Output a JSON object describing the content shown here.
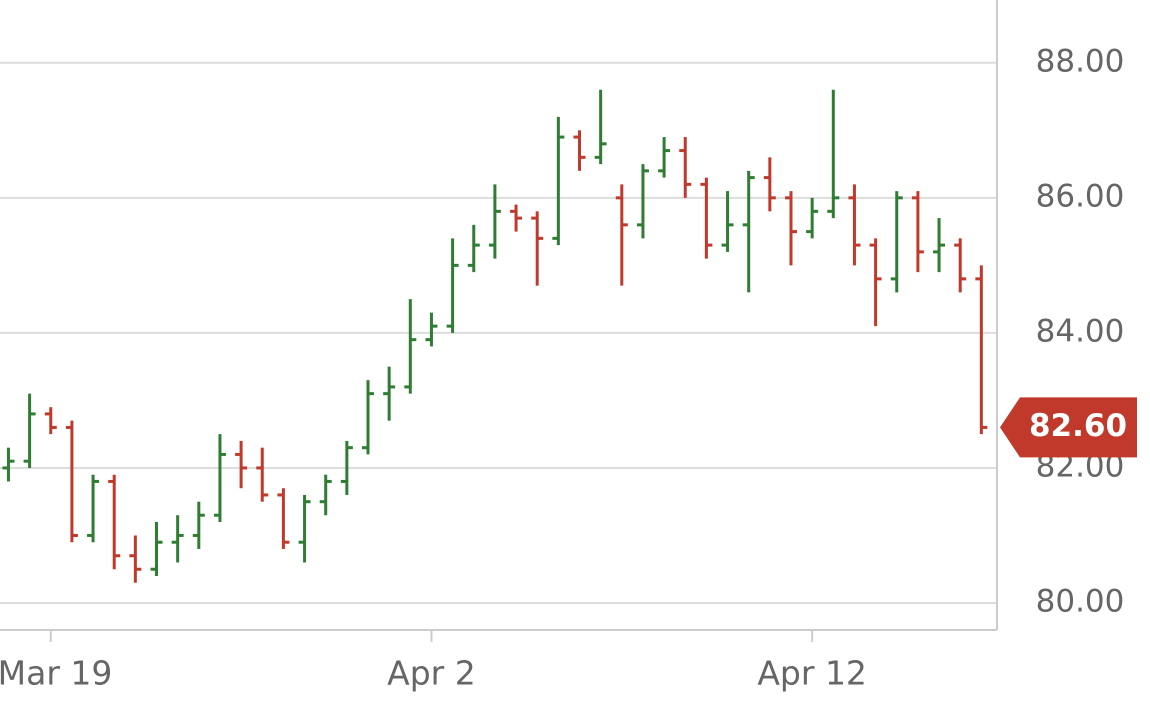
{
  "chart_data": {
    "type": "ohlc",
    "x": [
      -1,
      -0.5,
      0,
      0.5,
      1,
      1.5,
      2,
      2.5,
      3,
      3.5,
      4,
      4.5,
      5,
      5.5,
      6,
      6.5,
      7,
      7.5,
      8,
      8.5,
      9,
      9.5,
      10,
      10.5,
      11,
      11.5,
      12,
      12.5,
      13,
      13.5,
      14,
      14.5,
      15,
      15.5,
      16,
      16.5,
      17,
      17.5,
      18,
      18.5,
      19,
      19.5,
      20,
      20.5,
      21,
      21.5,
      22
    ],
    "open": [
      82.0,
      82.1,
      82.8,
      82.6,
      81.0,
      81.8,
      80.7,
      80.5,
      80.9,
      81.0,
      81.3,
      82.2,
      82.0,
      81.6,
      80.9,
      81.5,
      81.8,
      82.3,
      83.1,
      83.2,
      83.9,
      84.1,
      85.0,
      85.3,
      85.8,
      85.7,
      85.4,
      86.9,
      86.6,
      86.0,
      85.6,
      86.4,
      86.7,
      86.2,
      85.3,
      85.6,
      86.3,
      86.0,
      85.5,
      85.8,
      86.0,
      85.3,
      84.8,
      86.0,
      85.2,
      85.3,
      84.8
    ],
    "high": [
      82.3,
      83.1,
      82.9,
      82.7,
      81.9,
      81.9,
      81.0,
      81.2,
      81.3,
      81.5,
      82.5,
      82.4,
      82.3,
      81.7,
      81.6,
      81.9,
      82.4,
      83.3,
      83.5,
      84.5,
      84.3,
      85.4,
      85.6,
      86.2,
      85.9,
      85.8,
      87.2,
      87.0,
      87.6,
      86.2,
      86.5,
      86.9,
      86.9,
      86.3,
      86.1,
      86.4,
      86.6,
      86.1,
      86.0,
      87.6,
      86.2,
      85.4,
      86.1,
      86.1,
      85.7,
      85.4,
      85.0
    ],
    "low": [
      81.8,
      82.0,
      82.5,
      80.9,
      80.9,
      80.5,
      80.3,
      80.4,
      80.6,
      80.8,
      81.2,
      81.7,
      81.5,
      80.8,
      80.6,
      81.3,
      81.6,
      82.2,
      82.7,
      83.1,
      83.8,
      84.0,
      84.9,
      85.1,
      85.5,
      84.7,
      85.3,
      86.4,
      86.5,
      84.7,
      85.4,
      86.3,
      86.0,
      85.1,
      85.2,
      84.6,
      85.8,
      85.0,
      85.4,
      85.7,
      85.0,
      84.1,
      84.6,
      84.9,
      84.9,
      84.6,
      82.5
    ],
    "close": [
      82.1,
      82.8,
      82.6,
      81.0,
      81.8,
      80.7,
      80.5,
      80.9,
      81.0,
      81.3,
      82.2,
      82.0,
      81.6,
      80.9,
      81.5,
      81.8,
      82.3,
      83.1,
      83.2,
      83.9,
      84.1,
      85.0,
      85.3,
      85.8,
      85.7,
      85.4,
      86.9,
      86.6,
      86.8,
      85.6,
      86.4,
      86.7,
      86.2,
      85.3,
      85.6,
      86.3,
      86.0,
      85.5,
      85.8,
      86.0,
      85.3,
      84.8,
      86.0,
      85.2,
      85.3,
      84.8,
      82.6
    ],
    "up_color": "#2e7d32",
    "down_color": "#c0392b",
    "xlim": [
      -1.2,
      22.37
    ],
    "xticks": [
      {
        "value": 0,
        "label": "Mar 19"
      },
      {
        "value": 9,
        "label": "Apr 2"
      },
      {
        "value": 18,
        "label": "Apr 12"
      }
    ],
    "ylim": [
      79.6,
      88.93
    ],
    "yticks": [
      {
        "value": 80,
        "label": "80.00"
      },
      {
        "value": 82,
        "label": "82.00"
      },
      {
        "value": 84,
        "label": "84.00"
      },
      {
        "value": 86,
        "label": "86.00"
      },
      {
        "value": 88,
        "label": "88.00"
      }
    ],
    "grid": true,
    "last_price": {
      "value": 82.6,
      "label": "82.60"
    },
    "last_price_color": "#c0392b"
  }
}
